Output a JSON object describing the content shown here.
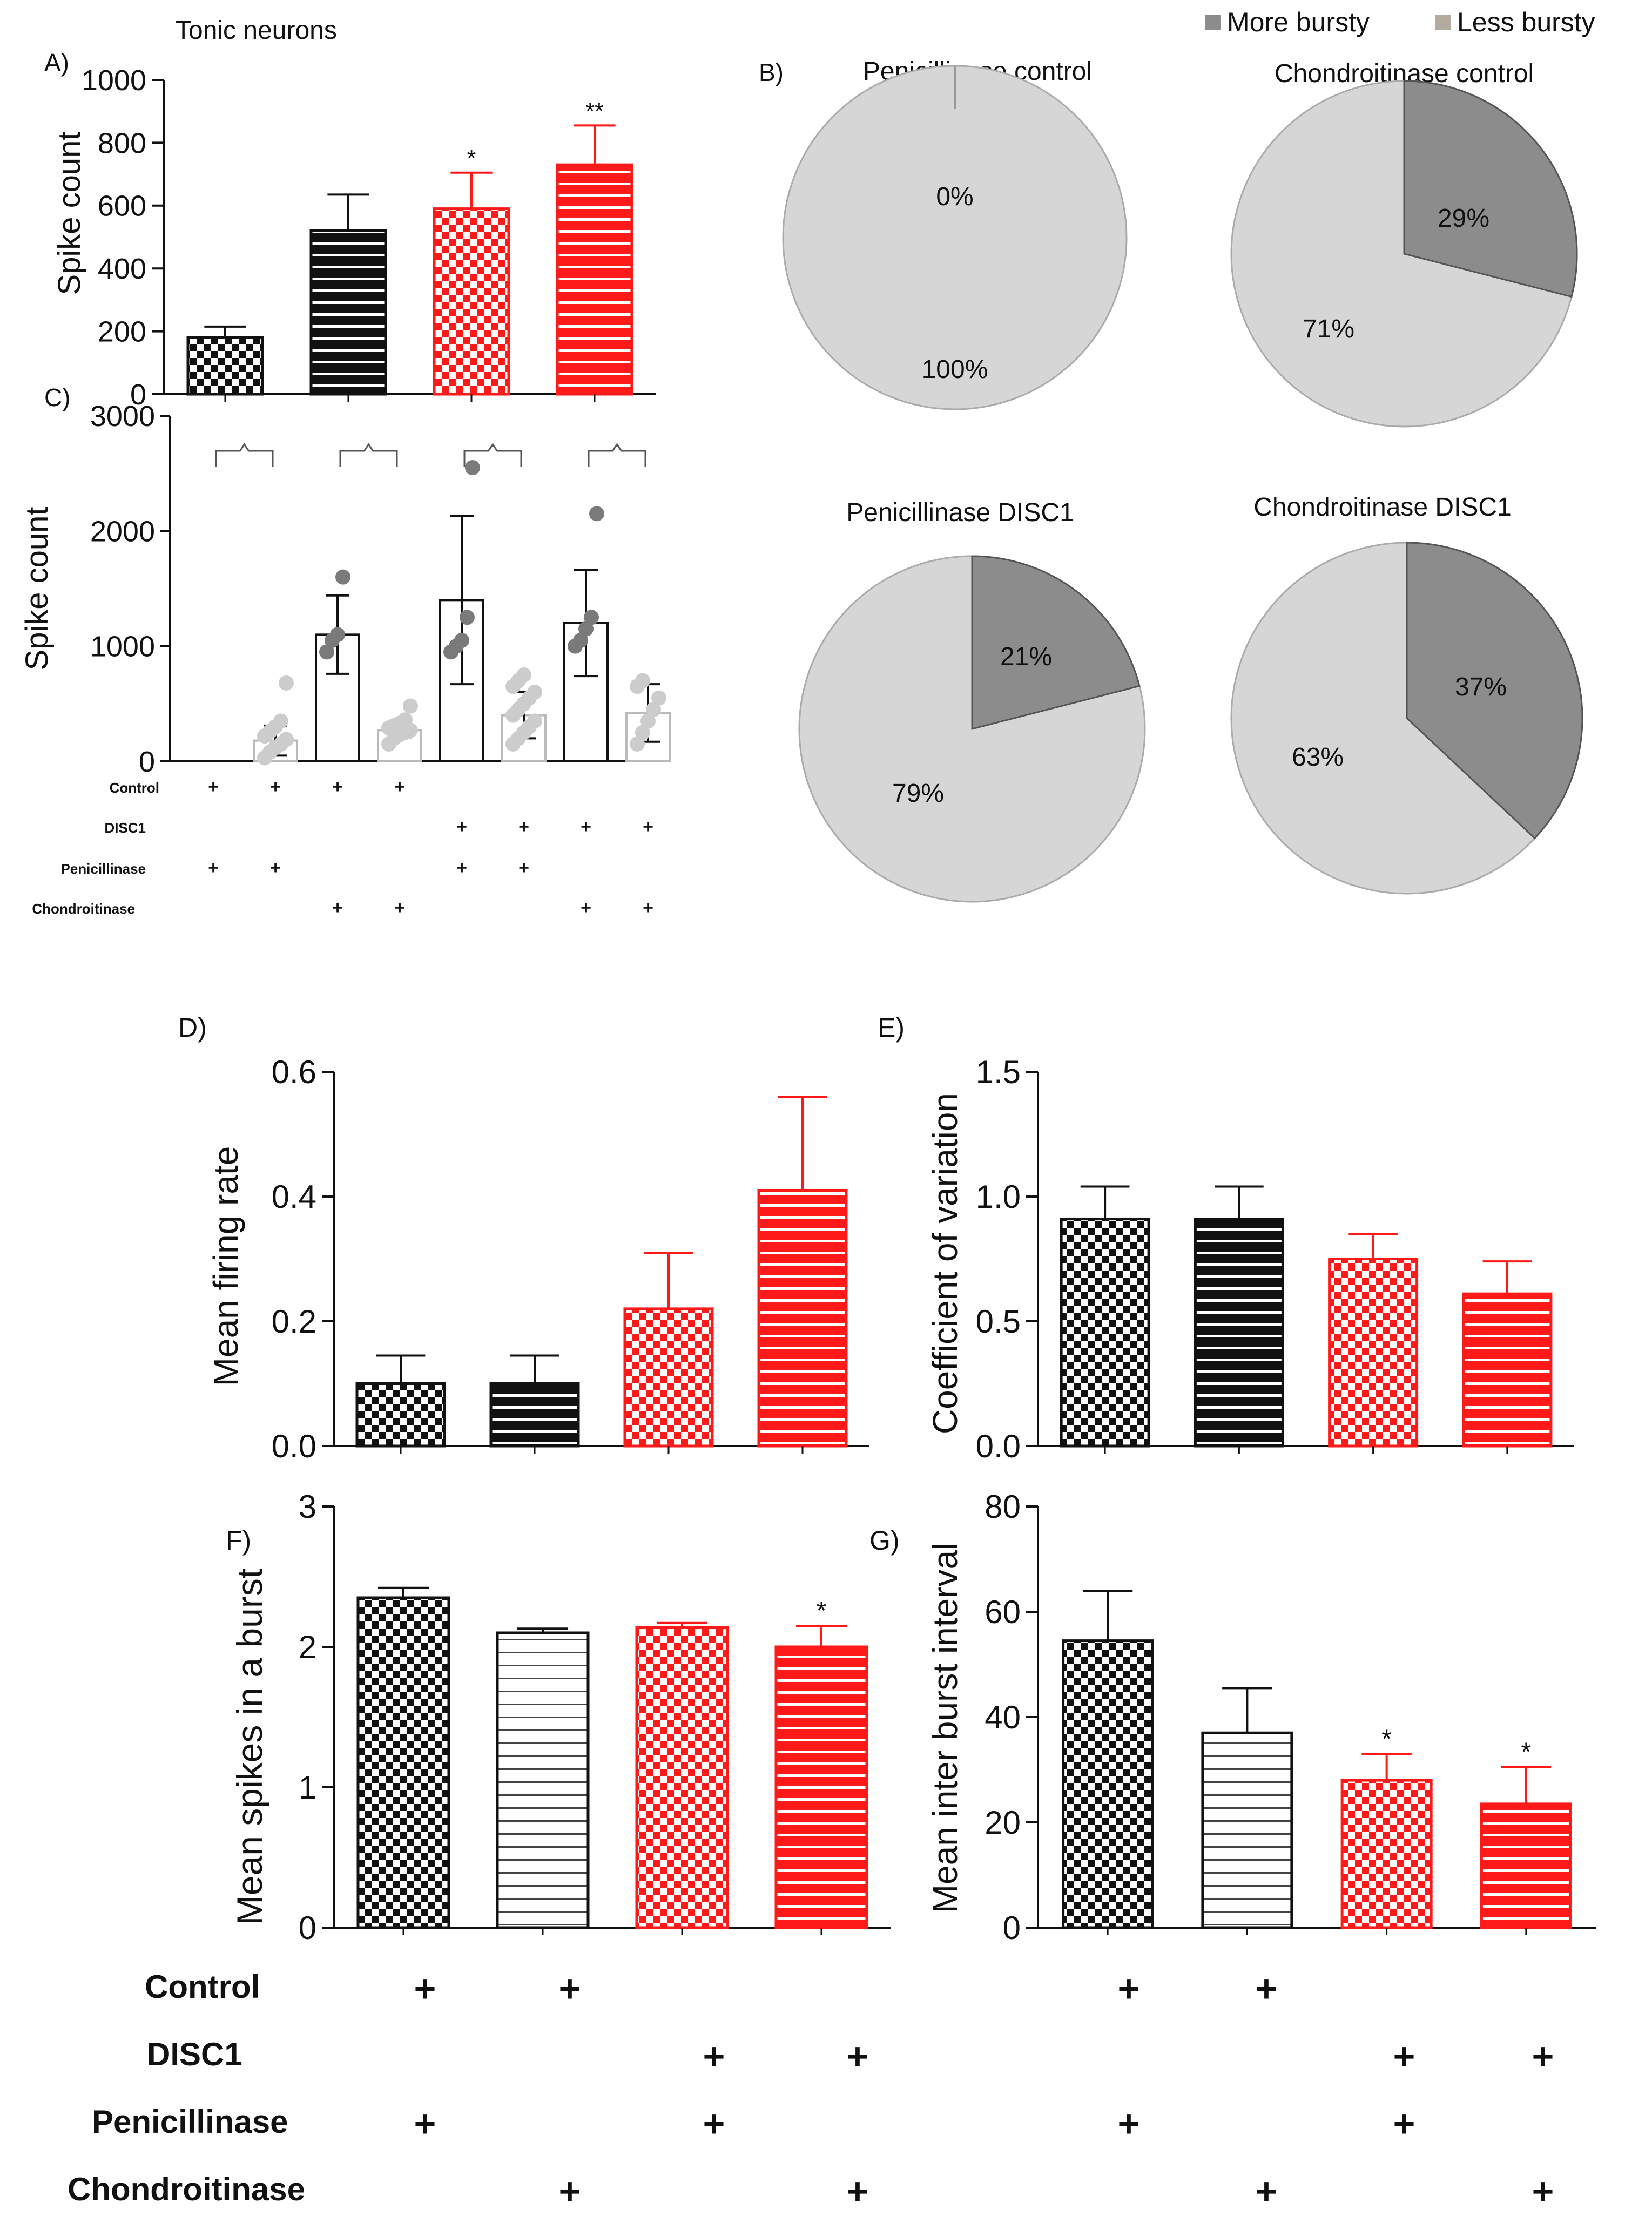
{
  "colors": {
    "black": "#111111",
    "red": "#ff1a1a",
    "dark_grey": "#8c8c8c",
    "light_grey": "#d6d6d6",
    "legend_less": "#b3aaa0",
    "dot_dark": "#7a7a7a",
    "dot_light": "#cccccc"
  },
  "chart_data": [
    {
      "id": "A",
      "type": "bar",
      "panel_letter": "A)",
      "title": "Tonic neurons",
      "ylabel": "Spike count",
      "xlabel": "",
      "ylim": [
        0,
        1000
      ],
      "yticks": [
        0,
        200,
        400,
        600,
        800,
        1000
      ],
      "ytick_labels": [
        "0",
        "200",
        "400",
        "600",
        "800",
        "1000"
      ],
      "series": [
        {
          "name": "Spike count",
          "values": [
            180,
            520,
            590,
            730
          ],
          "errors": [
            35,
            115,
            115,
            125
          ],
          "patterns": [
            "black-check",
            "black-stripe",
            "red-check",
            "red-stripe"
          ],
          "significance": [
            "",
            "",
            "*",
            "**"
          ]
        }
      ]
    },
    {
      "id": "B",
      "type": "pie",
      "panel_letter": "B)",
      "legend": [
        "More bursty",
        "Less bursty"
      ],
      "pies": [
        {
          "title": "Penicillinase control",
          "more": 0,
          "less": 100,
          "more_label": "0%",
          "less_label": "100%"
        },
        {
          "title": "Chondroitinase control",
          "more": 29,
          "less": 71,
          "more_label": "29%",
          "less_label": "71%"
        },
        {
          "title": "Penicillinase DISC1",
          "more": 21,
          "less": 79,
          "more_label": "21%",
          "less_label": "79%"
        },
        {
          "title": "Chondroitinase DISC1",
          "more": 37,
          "less": 63,
          "more_label": "37%",
          "less_label": "63%"
        }
      ]
    },
    {
      "id": "C",
      "type": "scatter",
      "panel_letter": "C)",
      "ylabel": "Spike count",
      "ylim": [
        0,
        3000
      ],
      "yticks": [
        0,
        1000,
        2000,
        3000
      ],
      "ytick_labels": [
        "0",
        "1000",
        "2000",
        "3000"
      ],
      "groups": [
        {
          "mean": 0,
          "err": 0,
          "dots": [],
          "shade": "dark"
        },
        {
          "mean": 180,
          "err": 130,
          "dots": [
            30,
            80,
            120,
            150,
            190,
            220,
            260,
            300,
            350,
            680
          ],
          "shade": "light"
        },
        {
          "mean": 1100,
          "err": 340,
          "dots": [
            950,
            1050,
            1100,
            1600
          ],
          "shade": "dark"
        },
        {
          "mean": 270,
          "err": 60,
          "dots": [
            150,
            200,
            230,
            250,
            270,
            290,
            310,
            330,
            360,
            480
          ],
          "shade": "light"
        },
        {
          "mean": 1400,
          "err": 730,
          "dots": [
            950,
            1000,
            1050,
            1250,
            2550
          ],
          "shade": "dark"
        },
        {
          "mean": 400,
          "err": 200,
          "dots": [
            150,
            200,
            250,
            300,
            350,
            400,
            450,
            500,
            550,
            600,
            650,
            700,
            750
          ],
          "shade": "light"
        },
        {
          "mean": 1200,
          "err": 460,
          "dots": [
            1000,
            1050,
            1150,
            1250,
            2150
          ],
          "shade": "dark"
        },
        {
          "mean": 420,
          "err": 250,
          "dots": [
            150,
            250,
            350,
            450,
            550,
            650,
            700
          ],
          "shade": "light"
        }
      ],
      "row_labels": [
        "Control",
        "DISC1",
        "Penicillinase",
        "Chondroitinase"
      ],
      "plus_matrix": [
        [
          1,
          1,
          1,
          1,
          0,
          0,
          0,
          0
        ],
        [
          0,
          0,
          0,
          0,
          1,
          1,
          1,
          1
        ],
        [
          1,
          1,
          0,
          0,
          1,
          1,
          0,
          0
        ],
        [
          0,
          0,
          1,
          1,
          0,
          0,
          1,
          1
        ]
      ]
    },
    {
      "id": "D",
      "type": "bar",
      "panel_letter": "D)",
      "ylabel": "Mean firing rate",
      "ylim": [
        0,
        0.6
      ],
      "yticks": [
        0,
        0.2,
        0.4,
        0.6
      ],
      "ytick_labels": [
        "0.0",
        "0.2",
        "0.4",
        "0.6"
      ],
      "series": [
        {
          "name": "Mean firing rate",
          "values": [
            0.1,
            0.1,
            0.22,
            0.41
          ],
          "errors": [
            0.045,
            0.045,
            0.09,
            0.15
          ],
          "patterns": [
            "black-check",
            "black-stripe",
            "red-check",
            "red-stripe"
          ],
          "significance": [
            "",
            "",
            "",
            ""
          ]
        }
      ]
    },
    {
      "id": "E",
      "type": "bar",
      "panel_letter": "E)",
      "ylabel": "Coefficient of variation",
      "ylim": [
        0,
        1.5
      ],
      "yticks": [
        0,
        0.5,
        1.0,
        1.5
      ],
      "ytick_labels": [
        "0.0",
        "0.5",
        "1.0",
        "1.5"
      ],
      "series": [
        {
          "name": "Coefficient of variation",
          "values": [
            0.91,
            0.91,
            0.75,
            0.61
          ],
          "errors": [
            0.13,
            0.13,
            0.1,
            0.13
          ],
          "patterns": [
            "black-check",
            "black-stripe",
            "red-check",
            "red-stripe"
          ],
          "significance": [
            "",
            "",
            "",
            ""
          ]
        }
      ]
    },
    {
      "id": "F",
      "type": "bar",
      "panel_letter": "F)",
      "ylabel": "Mean spikes in a burst",
      "ylim": [
        0,
        3
      ],
      "yticks": [
        0,
        1,
        2,
        3
      ],
      "ytick_labels": [
        "0",
        "1",
        "2",
        "3"
      ],
      "series": [
        {
          "name": "Mean spikes in a burst",
          "values": [
            2.35,
            2.1,
            2.14,
            2.0
          ],
          "errors": [
            0.07,
            0.03,
            0.03,
            0.15
          ],
          "patterns": [
            "black-check",
            "outline-stripe",
            "red-check",
            "red-stripe"
          ],
          "significance": [
            "",
            "",
            "",
            "*"
          ]
        }
      ],
      "row_labels": [
        "Control",
        "DISC1",
        "Penicillinase",
        "Chondroitinase"
      ],
      "plus_matrix": [
        [
          1,
          1,
          0,
          0
        ],
        [
          0,
          0,
          1,
          1
        ],
        [
          1,
          0,
          1,
          0
        ],
        [
          0,
          1,
          0,
          1
        ]
      ]
    },
    {
      "id": "G",
      "type": "bar",
      "panel_letter": "G)",
      "ylabel": "Mean inter burst interval",
      "ylim": [
        0,
        80
      ],
      "yticks": [
        0,
        20,
        40,
        60,
        80
      ],
      "ytick_labels": [
        "0",
        "20",
        "40",
        "60",
        "80"
      ],
      "series": [
        {
          "name": "Mean inter burst interval",
          "values": [
            54.5,
            37,
            28,
            23.5
          ],
          "errors": [
            9.5,
            8.5,
            5,
            7
          ],
          "patterns": [
            "black-check",
            "outline-stripe",
            "red-check",
            "red-stripe"
          ],
          "significance": [
            "",
            "",
            "*",
            "*"
          ]
        }
      ],
      "plus_matrix": [
        [
          1,
          1,
          0,
          0
        ],
        [
          0,
          0,
          1,
          1
        ],
        [
          1,
          0,
          1,
          0
        ],
        [
          0,
          1,
          0,
          1
        ]
      ]
    }
  ]
}
